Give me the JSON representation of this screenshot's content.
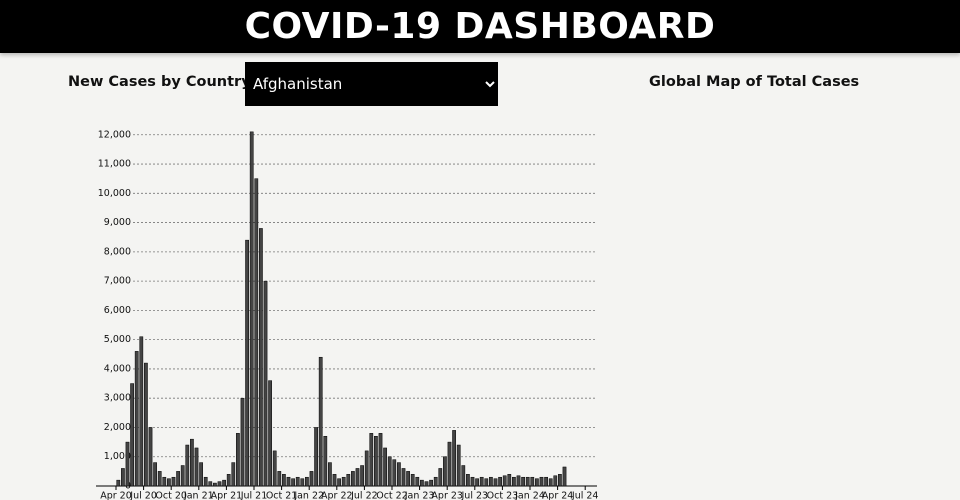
{
  "header": {
    "title": "COVID-19 DASHBOARD"
  },
  "controls": {
    "label": "New Cases by Country",
    "selected": "Afghanistan"
  },
  "map": {
    "title": "Global Map of Total Cases"
  },
  "chart_data": {
    "type": "bar",
    "color": "#444444",
    "categories": [
      "Apr 20",
      null,
      null,
      null,
      null,
      null,
      "Jul 20",
      null,
      null,
      null,
      null,
      null,
      "Oct 20",
      null,
      null,
      null,
      null,
      null,
      "Jan 21",
      null,
      null,
      null,
      null,
      null,
      "Apr 21",
      null,
      null,
      null,
      null,
      null,
      "Jul 21",
      null,
      null,
      null,
      null,
      null,
      "Oct 21",
      null,
      null,
      null,
      null,
      null,
      "Jan 22",
      null,
      null,
      null,
      null,
      null,
      "Apr 22",
      null,
      null,
      null,
      null,
      null,
      "Jul 22",
      null,
      null,
      null,
      null,
      null,
      "Oct 22",
      null,
      null,
      null,
      null,
      null,
      "Jan 23",
      null,
      null,
      null,
      null,
      null,
      "Apr 23",
      null,
      null,
      null,
      null,
      null,
      "Jul 23",
      null,
      null,
      null,
      null,
      null,
      "Oct 23",
      null,
      null,
      null,
      null,
      null,
      "Jan 24",
      null,
      null,
      null,
      null,
      null,
      "Apr 24",
      null
    ],
    "x_end_label": "Jul 24",
    "values": [
      200,
      600,
      1500,
      3500,
      4600,
      5100,
      4200,
      2000,
      800,
      500,
      300,
      250,
      300,
      500,
      700,
      1400,
      1600,
      1300,
      800,
      300,
      150,
      100,
      150,
      200,
      400,
      800,
      1800,
      3000,
      8400,
      12100,
      10500,
      8800,
      7000,
      3600,
      1200,
      500,
      400,
      300,
      250,
      300,
      250,
      300,
      500,
      2000,
      4400,
      1700,
      800,
      400,
      250,
      300,
      400,
      500,
      600,
      700,
      1200,
      1800,
      1700,
      1800,
      1300,
      1000,
      900,
      800,
      600,
      500,
      400,
      300,
      200,
      150,
      200,
      300,
      600,
      1000,
      1500,
      1900,
      1400,
      700,
      400,
      300,
      250,
      300,
      250,
      300,
      250,
      300,
      350,
      400,
      300,
      350,
      300,
      300,
      300,
      250,
      300,
      300,
      250,
      350,
      400,
      650
    ],
    "ylim": [
      0,
      12300
    ],
    "yticks": [
      0,
      {
        "value": 1000,
        "label": "1,000"
      },
      {
        "value": 2000,
        "label": "2,000"
      },
      {
        "value": 3000,
        "label": "3,000"
      },
      {
        "value": 4000,
        "label": "4,000"
      },
      {
        "value": 5000,
        "label": "5,000"
      },
      {
        "value": 6000,
        "label": "6,000"
      },
      {
        "value": 7000,
        "label": "7,000"
      },
      {
        "value": 8000,
        "label": "8,000"
      },
      {
        "value": 9000,
        "label": "9,000"
      },
      {
        "value": 10000,
        "label": "10,000"
      },
      {
        "value": 11000,
        "label": "11,000"
      },
      {
        "value": 12000,
        "label": "12,000"
      }
    ],
    "grid": true
  }
}
